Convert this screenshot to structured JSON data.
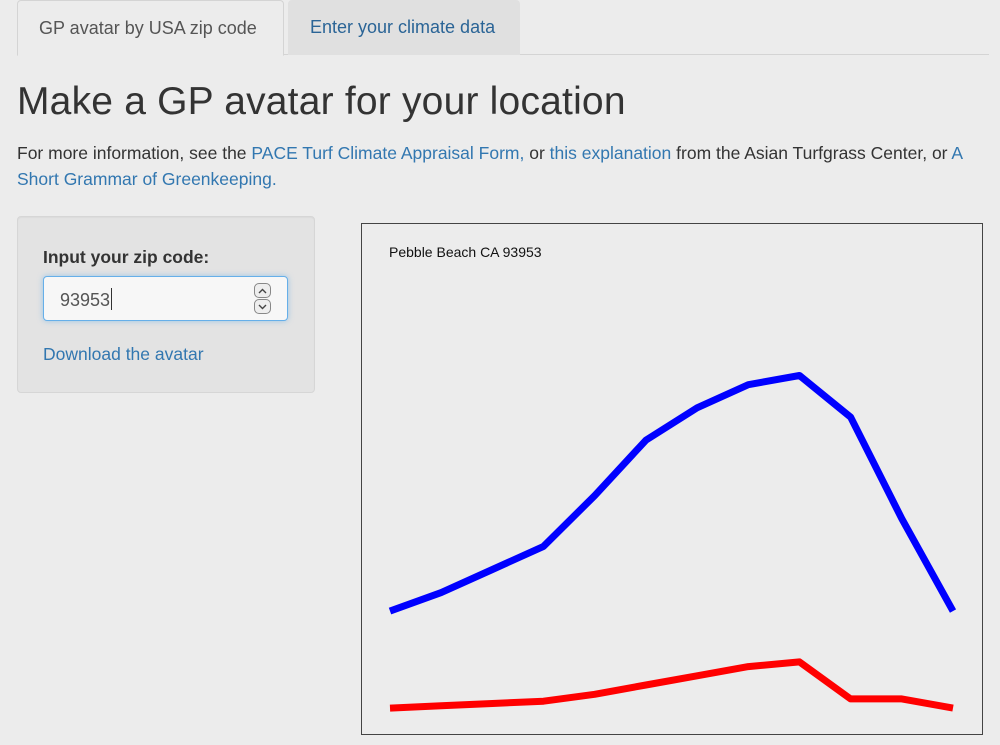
{
  "tabs": [
    {
      "label": "GP avatar by USA zip code",
      "active": true
    },
    {
      "label": "Enter your climate data",
      "active": false
    }
  ],
  "page": {
    "title": "Make a GP avatar for your location",
    "info_prefix": "For more information, see the ",
    "link1": "PACE Turf Climate Appraisal Form,",
    "info_mid1": " or ",
    "link2": "this explanation",
    "info_mid2": " from the Asian Turfgrass Center, or ",
    "link3": "A Short Grammar of Greenkeeping."
  },
  "sidebar": {
    "zip_label": "Input your zip code:",
    "zip_value": "93953",
    "download_label": "Download the avatar"
  },
  "chart_data": {
    "type": "line",
    "title": "Pebble Beach CA 93953",
    "xlabel": "",
    "ylabel": "",
    "grid": false,
    "x": [
      1,
      2,
      3,
      4,
      5,
      6,
      7,
      8,
      9,
      10,
      11,
      12
    ],
    "ylim": [
      0,
      1
    ],
    "series": [
      {
        "color": "#0000ff",
        "values": [
          0.24,
          0.28,
          0.33,
          0.38,
          0.49,
          0.61,
          0.68,
          0.73,
          0.75,
          0.66,
          0.44,
          0.24
        ]
      },
      {
        "color": "#ff0000",
        "values": [
          0.03,
          0.035,
          0.04,
          0.045,
          0.06,
          0.08,
          0.1,
          0.12,
          0.13,
          0.05,
          0.05,
          0.03
        ]
      }
    ]
  }
}
